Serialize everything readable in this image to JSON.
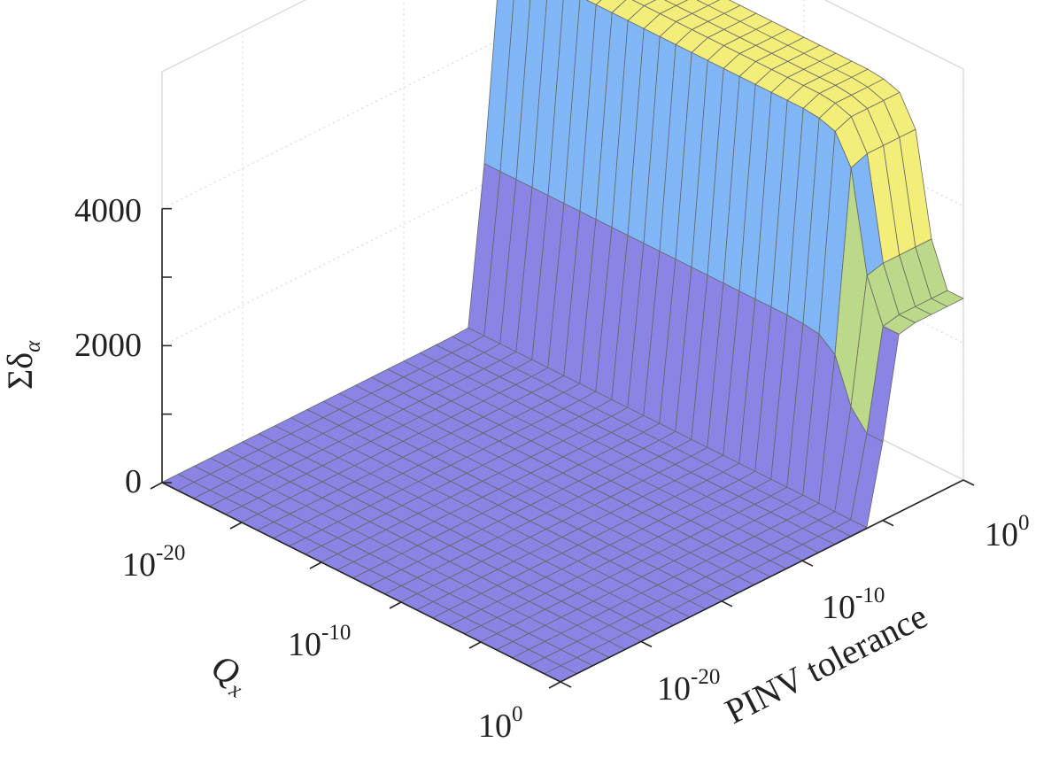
{
  "chart_data": {
    "type": "surface",
    "title": "",
    "xlabel": {
      "base": "Q",
      "sub": "x"
    },
    "ylabel": "PINV tolerance",
    "zlabel": {
      "prefix": "Σδ",
      "sub": "α"
    },
    "x_scale": "log",
    "y_scale": "log",
    "x_ticks": [
      {
        "base": "10",
        "exp": "-20",
        "value": 1e-20
      },
      {
        "base": "10",
        "exp": "-10",
        "value": 1e-10
      },
      {
        "base": "10",
        "exp": "0",
        "value": 1
      }
    ],
    "y_ticks": [
      {
        "base": "10",
        "exp": "-20",
        "value": 1e-20
      },
      {
        "base": "10",
        "exp": "-10",
        "value": 1e-10
      },
      {
        "base": "10",
        "exp": "0",
        "value": 1
      }
    ],
    "z_ticks": [
      "0",
      "2000",
      "4000"
    ],
    "xlim": [
      1e-25,
      1
    ],
    "ylim": [
      1e-25,
      1
    ],
    "zlim": [
      0,
      6000
    ],
    "grid": true,
    "x": [
      1e-25,
      1e-24,
      1e-23,
      1e-22,
      1e-21,
      1e-20,
      1e-19,
      1e-18,
      1e-17,
      1e-16,
      1e-15,
      1e-14,
      1e-13,
      1e-12,
      1e-11,
      1e-10,
      1e-09,
      1e-08,
      1e-07,
      1e-06,
      1e-05,
      0.0001,
      0.001,
      0.01,
      0.1,
      1
    ],
    "y": [
      1e-25,
      1e-24,
      1e-23,
      1e-22,
      1e-21,
      1e-20,
      1e-19,
      1e-18,
      1e-17,
      1e-16,
      1e-15,
      1e-14,
      1e-13,
      1e-12,
      1e-11,
      1e-10,
      1e-09,
      1e-08,
      1e-07,
      1e-06,
      1e-05,
      0.0001,
      0.001,
      0.01,
      0.1,
      1
    ],
    "z_profile_along_y": [
      5,
      5,
      5,
      5,
      5,
      5,
      5,
      5,
      5,
      5,
      5,
      5,
      5,
      5,
      5,
      5,
      5,
      6,
      8,
      20,
      2300,
      5200,
      5300,
      5300,
      5300,
      5300
    ],
    "z_decay_along_x": [
      1,
      1,
      1,
      1,
      1,
      1,
      1,
      1,
      1,
      1,
      1,
      1,
      1,
      1,
      1,
      1,
      1,
      1,
      1,
      1,
      0.995,
      0.98,
      0.9,
      0.62,
      0.5,
      0.5
    ],
    "color_bands": [
      {
        "z_min": 0,
        "z_max": 2000,
        "color": "#8a84e4"
      },
      {
        "z_min": 2000,
        "z_max": 3000,
        "color": "#bcd98a"
      },
      {
        "z_min": 3000,
        "z_max": 4000,
        "color": "#80b6f6"
      },
      {
        "z_min": 4000,
        "z_max": 6000,
        "color": "#f3ee7a"
      }
    ],
    "edge_color": "#666666"
  }
}
